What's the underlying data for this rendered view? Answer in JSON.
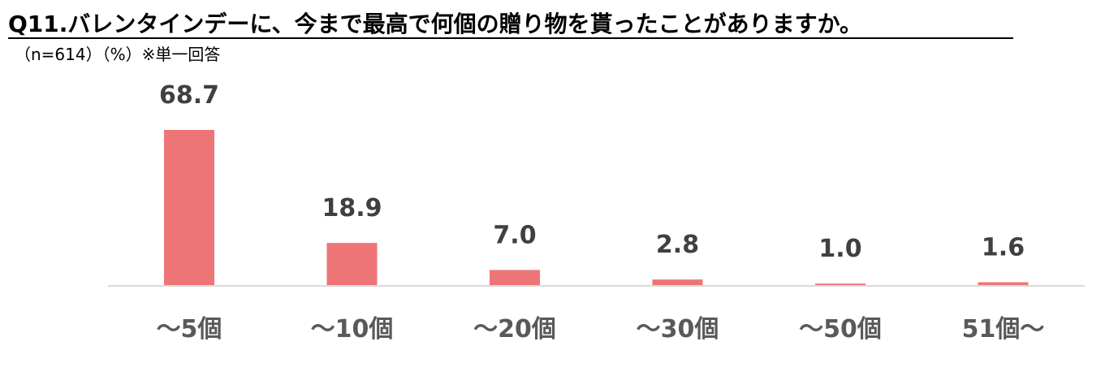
{
  "title": "Q11.バレンタインデーに、今まで最高で何個の贈り物を貰ったことがありますか。",
  "subtitle": "（n=614）（%）※単一回答",
  "colors": {
    "bar": "#ee7577",
    "axis": "#d9d9d9",
    "value_text": "#404040",
    "category_text": "#595959"
  },
  "chart_data": {
    "type": "bar",
    "title": "Q11.バレンタインデーに、今まで最高で何個の贈り物を貰ったことがありますか。",
    "categories": [
      "～5個",
      "～10個",
      "～20個",
      "～30個",
      "～50個",
      "51個～"
    ],
    "values": [
      68.7,
      18.9,
      7.0,
      2.8,
      1.0,
      1.6
    ],
    "value_labels": [
      "68.7",
      "18.9",
      "7.0",
      "2.8",
      "1.0",
      "1.6"
    ],
    "grid": false,
    "legend": "none"
  }
}
